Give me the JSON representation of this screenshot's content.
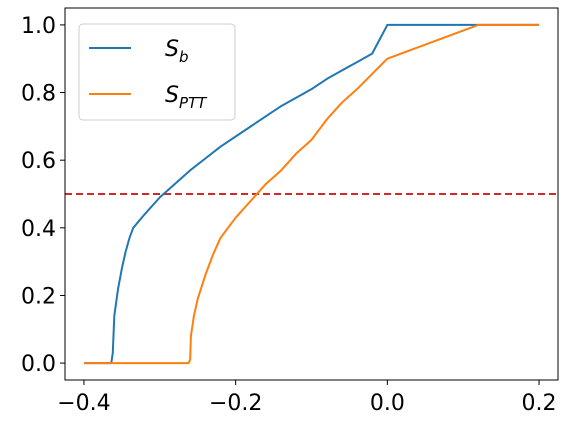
{
  "chart_data": {
    "type": "line",
    "title": "",
    "xlabel": "",
    "ylabel": "",
    "xlim": [
      -0.425,
      0.225
    ],
    "ylim": [
      -0.05,
      1.05
    ],
    "x_ticks": [
      -0.4,
      -0.2,
      0.0,
      0.2
    ],
    "x_tick_labels": [
      "−0.4",
      "−0.2",
      "0.0",
      "0.2"
    ],
    "y_ticks": [
      0.0,
      0.2,
      0.4,
      0.6,
      0.8,
      1.0
    ],
    "y_tick_labels": [
      "0.0",
      "0.2",
      "0.4",
      "0.6",
      "0.8",
      "1.0"
    ],
    "grid": false,
    "legend_position": "top-left",
    "series": [
      {
        "name": "S_b",
        "label_main": "S",
        "label_sub": "b",
        "color": "#1f77b4",
        "points": [
          [
            -0.4,
            0.0
          ],
          [
            -0.364,
            0.0
          ],
          [
            -0.362,
            0.03
          ],
          [
            -0.36,
            0.14
          ],
          [
            -0.355,
            0.22
          ],
          [
            -0.35,
            0.28
          ],
          [
            -0.345,
            0.33
          ],
          [
            -0.34,
            0.37
          ],
          [
            -0.335,
            0.4
          ],
          [
            -0.32,
            0.44
          ],
          [
            -0.3,
            0.49
          ],
          [
            -0.28,
            0.53
          ],
          [
            -0.26,
            0.57
          ],
          [
            -0.24,
            0.605
          ],
          [
            -0.22,
            0.64
          ],
          [
            -0.2,
            0.67
          ],
          [
            -0.18,
            0.7
          ],
          [
            -0.16,
            0.73
          ],
          [
            -0.14,
            0.76
          ],
          [
            -0.12,
            0.785
          ],
          [
            -0.1,
            0.81
          ],
          [
            -0.08,
            0.84
          ],
          [
            -0.06,
            0.865
          ],
          [
            -0.04,
            0.89
          ],
          [
            -0.02,
            0.915
          ],
          [
            0.0,
            1.0
          ],
          [
            0.2,
            1.0
          ]
        ]
      },
      {
        "name": "S_PTT",
        "label_main": "S",
        "label_sub": "PTT",
        "color": "#ff7f0e",
        "points": [
          [
            -0.4,
            0.0
          ],
          [
            -0.262,
            0.0
          ],
          [
            -0.26,
            0.01
          ],
          [
            -0.259,
            0.08
          ],
          [
            -0.255,
            0.14
          ],
          [
            -0.25,
            0.19
          ],
          [
            -0.24,
            0.26
          ],
          [
            -0.23,
            0.32
          ],
          [
            -0.22,
            0.37
          ],
          [
            -0.2,
            0.43
          ],
          [
            -0.18,
            0.48
          ],
          [
            -0.16,
            0.53
          ],
          [
            -0.14,
            0.57
          ],
          [
            -0.12,
            0.62
          ],
          [
            -0.1,
            0.66
          ],
          [
            -0.08,
            0.72
          ],
          [
            -0.06,
            0.77
          ],
          [
            -0.04,
            0.81
          ],
          [
            -0.02,
            0.855
          ],
          [
            0.0,
            0.9
          ],
          [
            0.12,
            1.0
          ],
          [
            0.2,
            1.0
          ]
        ]
      }
    ],
    "reference_lines": [
      {
        "orientation": "horizontal",
        "y": 0.5,
        "color": "#d62728",
        "style": "dashed"
      }
    ]
  }
}
